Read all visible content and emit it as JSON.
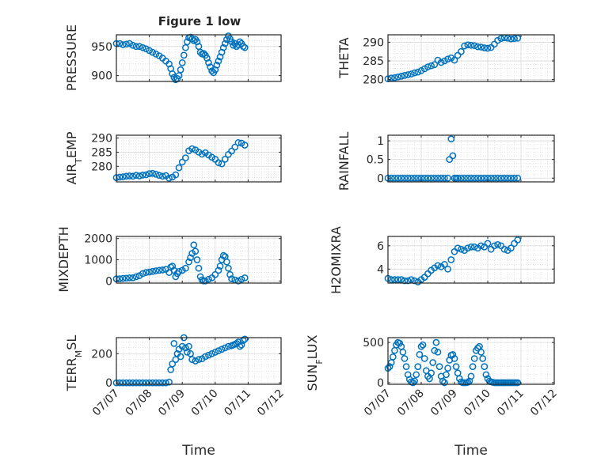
{
  "figure": {
    "title": "Figure 1 low",
    "x_axis_label": "Time",
    "x_ticks": [
      "07/07",
      "07/08",
      "07/09",
      "07/10",
      "07/11",
      "07/12"
    ]
  },
  "colors": {
    "marker": "#0072BD",
    "axes": "#262626",
    "grid": "#d9d9d9",
    "background": "#ffffff"
  },
  "chart_data": [
    {
      "type": "scatter",
      "ylabel": "PRESSURE",
      "yticks": [
        "900",
        "950"
      ],
      "ylim": [
        890,
        970
      ],
      "xlim": [
        0,
        5
      ],
      "grid": true,
      "x": [
        0,
        0.1,
        0.2,
        0.3,
        0.4,
        0.5,
        0.6,
        0.7,
        0.8,
        0.9,
        1.0,
        1.1,
        1.2,
        1.3,
        1.4,
        1.5,
        1.6,
        1.65,
        1.7,
        1.75,
        1.8,
        1.85,
        1.9,
        1.95,
        2.0,
        2.05,
        2.1,
        2.15,
        2.2,
        2.25,
        2.3,
        2.35,
        2.4,
        2.45,
        2.5,
        2.55,
        2.6,
        2.65,
        2.7,
        2.75,
        2.8,
        2.85,
        2.9,
        2.95,
        3.0,
        3.05,
        3.1,
        3.15,
        3.2,
        3.25,
        3.3,
        3.35,
        3.4,
        3.45,
        3.5,
        3.55,
        3.6,
        3.65,
        3.7,
        3.75,
        3.8,
        3.85,
        3.9
      ],
      "y": [
        955,
        955,
        953,
        954,
        955,
        952,
        950,
        950,
        948,
        946,
        943,
        940,
        937,
        934,
        930,
        925,
        920,
        912,
        903,
        897,
        893,
        895,
        900,
        910,
        922,
        935,
        948,
        958,
        965,
        966,
        963,
        960,
        962,
        958,
        950,
        940,
        937,
        938,
        935,
        930,
        922,
        915,
        908,
        905,
        910,
        918,
        925,
        932,
        940,
        948,
        955,
        962,
        968,
        963,
        958,
        952,
        955,
        950,
        953,
        958,
        955,
        950,
        948
      ]
    },
    {
      "type": "scatter",
      "ylabel": "THETA",
      "yticks": [
        "280",
        "285",
        "290"
      ],
      "ylim": [
        279.5,
        292
      ],
      "xlim": [
        0,
        5
      ],
      "grid": true,
      "x": [
        0,
        0.1,
        0.2,
        0.3,
        0.4,
        0.5,
        0.6,
        0.7,
        0.8,
        0.9,
        1.0,
        1.1,
        1.2,
        1.3,
        1.4,
        1.5,
        1.6,
        1.7,
        1.8,
        1.9,
        2.0,
        2.1,
        2.2,
        2.3,
        2.4,
        2.5,
        2.6,
        2.7,
        2.8,
        2.9,
        3.0,
        3.1,
        3.2,
        3.3,
        3.4,
        3.5,
        3.6,
        3.7,
        3.8,
        3.9
      ],
      "y": [
        280.2,
        280.4,
        280.5,
        280.7,
        280.9,
        281.1,
        281.3,
        281.5,
        281.8,
        282.0,
        282.4,
        282.9,
        283.4,
        283.7,
        284.0,
        285.2,
        284.6,
        285.0,
        285.5,
        285.8,
        285.2,
        286.5,
        287.5,
        289.0,
        289.3,
        289.2,
        289.1,
        288.8,
        288.7,
        288.5,
        288.4,
        288.6,
        289.5,
        290.5,
        291.0,
        291.2,
        291.1,
        290.9,
        291.0,
        291.1
      ]
    },
    {
      "type": "scatter",
      "ylabel": "AIR_TEMP",
      "yticks": [
        "280",
        "285",
        "290"
      ],
      "ylim": [
        274.5,
        291
      ],
      "xlim": [
        0,
        5
      ],
      "grid": true,
      "x": [
        0,
        0.1,
        0.2,
        0.3,
        0.4,
        0.5,
        0.6,
        0.7,
        0.8,
        0.9,
        1.0,
        1.1,
        1.2,
        1.3,
        1.4,
        1.5,
        1.6,
        1.7,
        1.8,
        1.9,
        2.0,
        2.1,
        2.2,
        2.3,
        2.4,
        2.5,
        2.6,
        2.7,
        2.8,
        2.9,
        3.0,
        3.1,
        3.2,
        3.3,
        3.4,
        3.5,
        3.6,
        3.7,
        3.8,
        3.9
      ],
      "y": [
        276.0,
        276.2,
        276.3,
        276.5,
        276.6,
        276.5,
        276.8,
        276.6,
        276.9,
        277.0,
        277.4,
        277.5,
        277.2,
        276.8,
        276.5,
        276.7,
        275.8,
        276.2,
        277.0,
        279.5,
        281.5,
        283.0,
        285.5,
        286.2,
        285.8,
        285.0,
        284.3,
        284.8,
        284.0,
        283.2,
        282.5,
        281.3,
        280.9,
        282.5,
        284.2,
        285.4,
        286.8,
        288.4,
        288.2,
        287.5
      ]
    },
    {
      "type": "scatter",
      "ylabel": "RAINFALL",
      "yticks": [
        "0",
        "0.5",
        "1"
      ],
      "ylim": [
        -0.1,
        1.15
      ],
      "xlim": [
        0,
        5
      ],
      "grid": true,
      "x": [
        0,
        0.1,
        0.2,
        0.3,
        0.4,
        0.5,
        0.6,
        0.7,
        0.8,
        0.9,
        1.0,
        1.1,
        1.2,
        1.3,
        1.4,
        1.5,
        1.6,
        1.7,
        1.8,
        1.85,
        1.9,
        1.95,
        2.0,
        2.05,
        2.1,
        2.2,
        2.3,
        2.4,
        2.5,
        2.6,
        2.7,
        2.8,
        2.9,
        3.0,
        3.1,
        3.2,
        3.3,
        3.4,
        3.5,
        3.6,
        3.7,
        3.8,
        3.9
      ],
      "y": [
        0,
        0,
        0,
        0,
        0,
        0,
        0,
        0,
        0,
        0,
        0,
        0,
        0,
        0,
        0,
        0,
        0,
        0,
        0,
        0.5,
        1.05,
        0.6,
        0,
        0,
        0,
        0,
        0,
        0,
        0,
        0,
        0,
        0,
        0,
        0,
        0,
        0,
        0,
        0,
        0,
        0,
        0,
        0,
        0
      ]
    },
    {
      "type": "scatter",
      "ylabel": "MIXDEPTH",
      "yticks": [
        "0",
        "1000",
        "2000"
      ],
      "ylim": [
        -100,
        2100
      ],
      "xlim": [
        0,
        5
      ],
      "grid": true,
      "x": [
        0,
        0.1,
        0.2,
        0.3,
        0.4,
        0.5,
        0.6,
        0.7,
        0.8,
        0.9,
        1.0,
        1.1,
        1.2,
        1.3,
        1.4,
        1.5,
        1.6,
        1.65,
        1.7,
        1.75,
        1.8,
        1.85,
        1.9,
        2.0,
        2.1,
        2.2,
        2.25,
        2.3,
        2.35,
        2.4,
        2.45,
        2.5,
        2.55,
        2.6,
        2.65,
        2.7,
        2.8,
        2.9,
        3.0,
        3.1,
        3.15,
        3.2,
        3.25,
        3.3,
        3.35,
        3.4,
        3.45,
        3.5,
        3.6,
        3.7,
        3.8,
        3.9
      ],
      "y": [
        100,
        100,
        120,
        130,
        150,
        150,
        200,
        250,
        350,
        400,
        420,
        450,
        480,
        500,
        520,
        550,
        400,
        650,
        700,
        500,
        200,
        350,
        450,
        500,
        600,
        900,
        1100,
        1300,
        1700,
        1400,
        1000,
        600,
        200,
        50,
        0,
        0,
        80,
        150,
        300,
        500,
        700,
        1000,
        1200,
        1150,
        900,
        600,
        300,
        100,
        50,
        0,
        80,
        150
      ]
    },
    {
      "type": "scatter",
      "ylabel": "H2OMIXRA",
      "yticks": [
        "4",
        "6"
      ],
      "ylim": [
        2.8,
        6.8
      ],
      "xlim": [
        0,
        5
      ],
      "grid": true,
      "x": [
        0,
        0.1,
        0.2,
        0.3,
        0.4,
        0.5,
        0.6,
        0.7,
        0.8,
        0.9,
        1.0,
        1.1,
        1.2,
        1.3,
        1.4,
        1.5,
        1.6,
        1.7,
        1.8,
        1.9,
        2.0,
        2.1,
        2.2,
        2.3,
        2.4,
        2.5,
        2.6,
        2.7,
        2.8,
        2.9,
        3.0,
        3.1,
        3.2,
        3.3,
        3.4,
        3.5,
        3.6,
        3.7,
        3.8,
        3.9
      ],
      "y": [
        3.2,
        3.1,
        3.1,
        3.1,
        3.1,
        3.0,
        3.0,
        3.1,
        3.0,
        2.9,
        3.1,
        3.3,
        3.6,
        3.9,
        4.1,
        4.3,
        4.2,
        4.4,
        4.0,
        4.8,
        5.5,
        5.8,
        5.7,
        5.6,
        5.8,
        5.9,
        5.9,
        5.8,
        6.0,
        5.9,
        6.2,
        5.7,
        6.0,
        6.1,
        6.0,
        5.7,
        5.6,
        5.8,
        6.2,
        6.5
      ]
    },
    {
      "type": "scatter",
      "ylabel": "TERR_MSL",
      "yticks": [
        "0",
        "200"
      ],
      "ylim": [
        -10,
        310
      ],
      "xlim": [
        0,
        5
      ],
      "grid": true,
      "x": [
        0,
        0.1,
        0.2,
        0.3,
        0.4,
        0.5,
        0.6,
        0.7,
        0.8,
        0.9,
        1.0,
        1.1,
        1.2,
        1.3,
        1.4,
        1.5,
        1.6,
        1.65,
        1.7,
        1.75,
        1.8,
        1.85,
        1.9,
        1.95,
        2.0,
        2.05,
        2.1,
        2.15,
        2.2,
        2.25,
        2.3,
        2.4,
        2.5,
        2.6,
        2.7,
        2.8,
        2.9,
        3.0,
        3.1,
        3.2,
        3.3,
        3.4,
        3.5,
        3.55,
        3.6,
        3.65,
        3.7,
        3.75,
        3.8,
        3.85,
        3.9
      ],
      "y": [
        0,
        0,
        0,
        0,
        0,
        0,
        0,
        0,
        0,
        0,
        0,
        0,
        0,
        0,
        0,
        0,
        5,
        90,
        130,
        270,
        160,
        200,
        230,
        180,
        250,
        310,
        240,
        210,
        250,
        200,
        160,
        150,
        160,
        165,
        180,
        190,
        200,
        210,
        220,
        230,
        240,
        250,
        255,
        260,
        265,
        270,
        280,
        250,
        260,
        290,
        300
      ]
    },
    {
      "type": "scatter",
      "ylabel": "SUN_FLUX",
      "yticks": [
        "0",
        "500"
      ],
      "ylim": [
        -20,
        560
      ],
      "xlim": [
        0,
        5
      ],
      "grid": true,
      "x": [
        0,
        0.05,
        0.1,
        0.15,
        0.2,
        0.25,
        0.3,
        0.35,
        0.4,
        0.45,
        0.5,
        0.55,
        0.6,
        0.65,
        0.7,
        0.75,
        0.8,
        0.85,
        0.9,
        0.95,
        1.0,
        1.05,
        1.1,
        1.15,
        1.2,
        1.25,
        1.3,
        1.35,
        1.4,
        1.45,
        1.5,
        1.55,
        1.6,
        1.65,
        1.7,
        1.75,
        1.8,
        1.85,
        1.9,
        1.95,
        2.0,
        2.05,
        2.1,
        2.15,
        2.2,
        2.25,
        2.3,
        2.35,
        2.4,
        2.45,
        2.5,
        2.55,
        2.6,
        2.65,
        2.7,
        2.75,
        2.8,
        2.85,
        2.9,
        2.95,
        3.0,
        3.05,
        3.1,
        3.15,
        3.2,
        3.25,
        3.3,
        3.35,
        3.4,
        3.45,
        3.5,
        3.55,
        3.6,
        3.65,
        3.7,
        3.75,
        3.8,
        3.85,
        3.9
      ],
      "y": [
        180,
        200,
        250,
        320,
        400,
        470,
        500,
        490,
        450,
        380,
        300,
        200,
        100,
        40,
        10,
        0,
        20,
        100,
        200,
        350,
        450,
        470,
        300,
        150,
        80,
        50,
        120,
        250,
        400,
        500,
        380,
        200,
        80,
        20,
        0,
        100,
        180,
        280,
        340,
        350,
        300,
        200,
        120,
        50,
        10,
        0,
        0,
        0,
        5,
        20,
        80,
        200,
        300,
        400,
        430,
        450,
        380,
        300,
        200,
        100,
        50,
        20,
        10,
        5,
        0,
        0,
        0,
        0,
        0,
        0,
        0,
        0,
        0,
        0,
        0,
        0,
        0,
        0,
        0
      ]
    }
  ]
}
